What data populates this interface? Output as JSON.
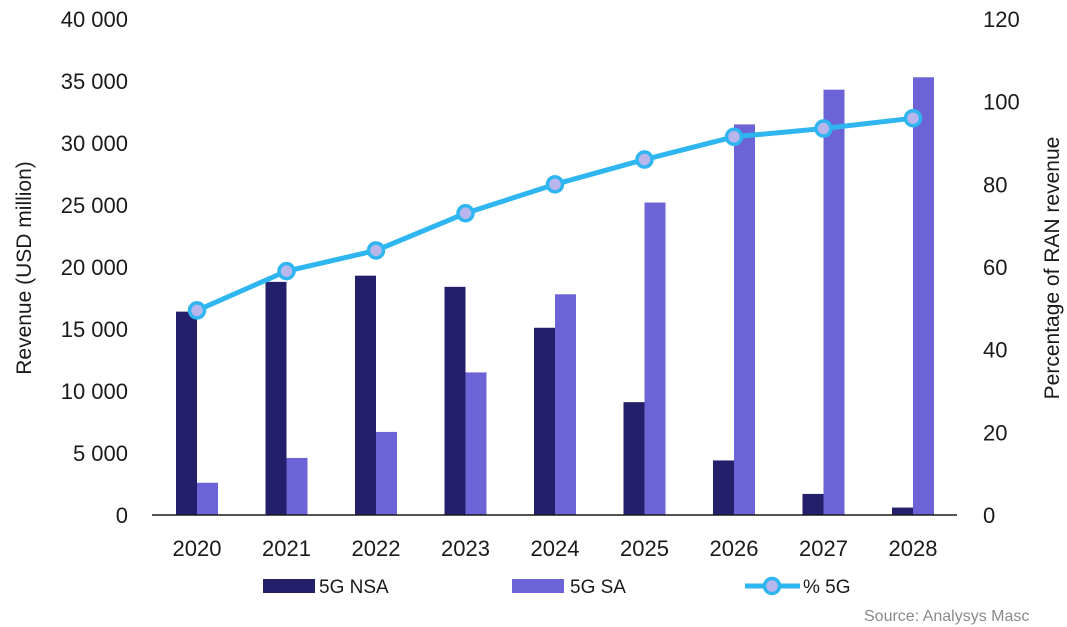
{
  "chart_data": {
    "type": "bar",
    "categories": [
      "2020",
      "2021",
      "2022",
      "2023",
      "2024",
      "2025",
      "2026",
      "2027",
      "2028"
    ],
    "series": [
      {
        "name": "5G NSA",
        "type": "bar",
        "axis": "left",
        "color": "#231f6b",
        "values": [
          16400,
          18800,
          19300,
          18400,
          15100,
          9100,
          4400,
          1700,
          600
        ]
      },
      {
        "name": "5G SA",
        "type": "bar",
        "axis": "left",
        "color": "#6b63d6",
        "values": [
          2600,
          4600,
          6700,
          11500,
          17800,
          25200,
          31500,
          34300,
          35300
        ]
      },
      {
        "name": "% 5G",
        "type": "line",
        "axis": "right",
        "color": "#2fb6f0",
        "values": [
          49.5,
          59,
          64,
          73,
          80,
          86,
          91.5,
          93.5,
          96
        ]
      }
    ],
    "ylabel": "Revenue (USD million)",
    "ylabel_right": "Percentage of RAN revenue",
    "ylim": [
      0,
      40000
    ],
    "yticks": [
      "0",
      "5 000",
      "10 000",
      "15 000",
      "20 000",
      "25 000",
      "30 000",
      "35 000",
      "40 000"
    ],
    "ylim_right": [
      0,
      120
    ],
    "yticks_right": [
      "0",
      "20",
      "40",
      "60",
      "80",
      "100",
      "120"
    ],
    "grid": false,
    "legend_position": "bottom"
  },
  "source": "Source: Analysys Masc"
}
